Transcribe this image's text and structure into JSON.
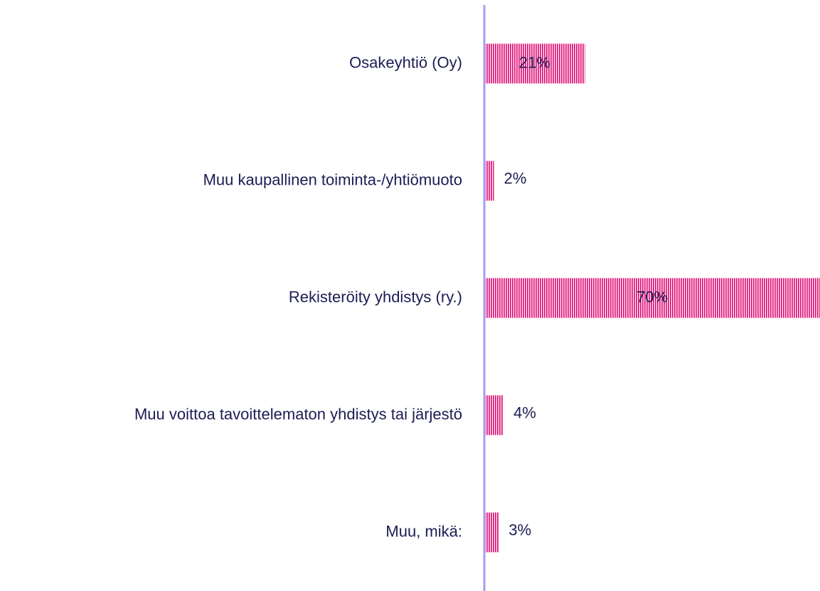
{
  "chart_data": {
    "type": "hbar",
    "categories": [
      "Osakeyhtiö (Oy)",
      "Muu kaupallinen toiminta-/yhtiömuoto",
      "Rekisteröity yhdistys (ry.)",
      "Muu voittoa tavoittelematon yhdistys tai järjestö",
      "Muu, mikä:"
    ],
    "values": [
      21,
      2,
      70,
      4,
      3
    ],
    "value_labels": [
      "21%",
      "2%",
      "70%",
      "4%",
      "3%"
    ],
    "color": "#e0177a"
  }
}
